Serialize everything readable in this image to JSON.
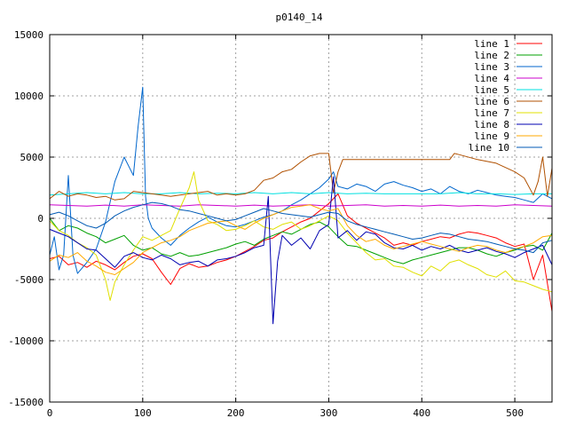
{
  "chart_data": {
    "type": "line",
    "title": "p0140_14",
    "xlabel": "",
    "ylabel": "",
    "xlim": [
      0,
      540
    ],
    "ylim": [
      -15000,
      15000
    ],
    "xticks": [
      0,
      100,
      200,
      300,
      400,
      500
    ],
    "yticks": [
      -15000,
      -10000,
      -5000,
      0,
      5000,
      10000,
      15000
    ],
    "grid": true,
    "legend_position": "top-right",
    "series": [
      {
        "name": "line 1",
        "color": "#ff0000",
        "x": [
          0,
          10,
          20,
          30,
          40,
          50,
          60,
          70,
          80,
          90,
          100,
          110,
          120,
          130,
          140,
          150,
          160,
          170,
          180,
          190,
          200,
          210,
          220,
          230,
          240,
          250,
          260,
          270,
          280,
          290,
          300,
          310,
          320,
          330,
          340,
          350,
          360,
          370,
          380,
          390,
          400,
          410,
          420,
          430,
          440,
          450,
          460,
          470,
          480,
          490,
          500,
          510,
          520,
          530,
          540
        ],
        "y": [
          -3300,
          -3100,
          -3800,
          -3600,
          -4000,
          -3500,
          -3800,
          -4200,
          -3600,
          -3100,
          -2900,
          -3300,
          -4400,
          -5400,
          -4100,
          -3700,
          -4000,
          -3900,
          -3600,
          -3400,
          -3100,
          -2700,
          -2300,
          -1800,
          -1600,
          -1100,
          -700,
          -300,
          0,
          600,
          1200,
          2000,
          200,
          -400,
          -800,
          -1200,
          -1600,
          -2200,
          -2000,
          -2200,
          -1900,
          -1700,
          -1500,
          -1600,
          -1300,
          -1100,
          -1200,
          -1400,
          -1600,
          -2000,
          -2300,
          -2100,
          -5000,
          -3000,
          -7600
        ]
      },
      {
        "name": "line 2",
        "color": "#00a000",
        "x": [
          0,
          10,
          20,
          30,
          40,
          50,
          60,
          70,
          80,
          90,
          100,
          110,
          120,
          130,
          140,
          150,
          160,
          170,
          180,
          190,
          200,
          210,
          220,
          230,
          240,
          250,
          260,
          270,
          280,
          290,
          300,
          310,
          320,
          330,
          340,
          350,
          360,
          370,
          380,
          390,
          400,
          410,
          420,
          430,
          440,
          450,
          460,
          470,
          480,
          490,
          500,
          510,
          520,
          530,
          540
        ],
        "y": [
          0,
          -1000,
          -600,
          -800,
          -1200,
          -1500,
          -2000,
          -1700,
          -1400,
          -2200,
          -2600,
          -2400,
          -2900,
          -3100,
          -2800,
          -3100,
          -3000,
          -2800,
          -2600,
          -2400,
          -2100,
          -1900,
          -2200,
          -1700,
          -1400,
          -1100,
          -1300,
          -900,
          -500,
          -300,
          -700,
          -1500,
          -2200,
          -2300,
          -2600,
          -2900,
          -3200,
          -3500,
          -3700,
          -3400,
          -3200,
          -3000,
          -2800,
          -2600,
          -2400,
          -2400,
          -2600,
          -2900,
          -3100,
          -2800,
          -2600,
          -2300,
          -2200,
          -2600,
          -1200
        ]
      },
      {
        "name": "line 3",
        "color": "#0066cc",
        "x": [
          0,
          5,
          10,
          15,
          20,
          25,
          30,
          40,
          50,
          60,
          70,
          80,
          90,
          95,
          100,
          103,
          106,
          110,
          120,
          130,
          140,
          150,
          160,
          170,
          180,
          190,
          200,
          210,
          220,
          230,
          240,
          250,
          260,
          270,
          280,
          290,
          300,
          305,
          310,
          320,
          330,
          340,
          350,
          360,
          370,
          380,
          390,
          400,
          410,
          420,
          430,
          440,
          450,
          460,
          470,
          480,
          490,
          500,
          510,
          520,
          530,
          540
        ],
        "y": [
          -3000,
          -1500,
          -4200,
          -3000,
          3500,
          -3000,
          -4500,
          -3600,
          -2500,
          -300,
          3000,
          5000,
          3500,
          7500,
          10700,
          1800,
          0,
          -800,
          -1600,
          -2200,
          -1400,
          -800,
          -300,
          100,
          -300,
          -600,
          -700,
          -500,
          -200,
          100,
          300,
          600,
          1100,
          1500,
          2000,
          2500,
          3200,
          3800,
          2600,
          2400,
          2800,
          2600,
          2200,
          2800,
          3000,
          2700,
          2500,
          2200,
          2400,
          2000,
          2600,
          2200,
          2000,
          2300,
          2100,
          1900,
          1800,
          1700,
          1500,
          1300,
          2000,
          1600
        ]
      },
      {
        "name": "line 4",
        "color": "#cc00cc",
        "x": [
          0,
          20,
          40,
          60,
          80,
          100,
          120,
          140,
          160,
          180,
          200,
          220,
          240,
          260,
          280,
          300,
          320,
          340,
          360,
          380,
          400,
          420,
          440,
          460,
          480,
          500,
          520,
          540
        ],
        "y": [
          1100,
          1050,
          1000,
          1080,
          1000,
          1100,
          1050,
          1000,
          1100,
          1050,
          1000,
          1080,
          1000,
          1050,
          1100,
          1000,
          1050,
          1100,
          1000,
          1050,
          1000,
          1080,
          1000,
          1050,
          1000,
          1100,
          1050,
          1000
        ]
      },
      {
        "name": "line 5",
        "color": "#00e0e0",
        "x": [
          0,
          20,
          40,
          60,
          80,
          100,
          120,
          140,
          160,
          180,
          200,
          220,
          240,
          260,
          280,
          300,
          320,
          340,
          360,
          380,
          400,
          420,
          440,
          460,
          480,
          500,
          520,
          540
        ],
        "y": [
          1900,
          2000,
          2100,
          2000,
          2100,
          2000,
          2000,
          2100,
          2000,
          2050,
          2000,
          2100,
          2000,
          2100,
          2000,
          2100,
          2000,
          2050,
          2000,
          2000,
          2000,
          2000,
          2100,
          2000,
          2000,
          1950,
          2000,
          2000
        ]
      },
      {
        "name": "line 6",
        "color": "#b05000",
        "x": [
          0,
          10,
          20,
          30,
          40,
          50,
          60,
          70,
          80,
          90,
          100,
          110,
          120,
          130,
          140,
          150,
          160,
          170,
          180,
          190,
          200,
          210,
          220,
          230,
          240,
          250,
          260,
          270,
          280,
          290,
          300,
          305,
          310,
          315,
          320,
          330,
          350,
          400,
          430,
          435,
          440,
          460,
          480,
          500,
          510,
          520,
          525,
          530,
          535,
          540
        ],
        "y": [
          1600,
          2200,
          1800,
          2000,
          1900,
          1700,
          1800,
          1500,
          1600,
          2200,
          2100,
          2000,
          1900,
          1800,
          1900,
          2000,
          2100,
          2200,
          1900,
          2000,
          1900,
          2000,
          2300,
          3100,
          3300,
          3800,
          4000,
          4600,
          5100,
          5300,
          5300,
          2100,
          3800,
          4800,
          4800,
          4800,
          4800,
          4800,
          4800,
          5300,
          5200,
          4800,
          4500,
          3800,
          3300,
          1900,
          3000,
          5000,
          1800,
          4100
        ]
      },
      {
        "name": "line 7",
        "color": "#e0e000",
        "x": [
          0,
          10,
          20,
          30,
          40,
          50,
          60,
          65,
          70,
          80,
          90,
          100,
          110,
          120,
          130,
          140,
          150,
          155,
          160,
          170,
          180,
          190,
          200,
          210,
          220,
          230,
          240,
          250,
          260,
          270,
          280,
          290,
          300,
          310,
          320,
          330,
          340,
          350,
          360,
          370,
          380,
          390,
          400,
          410,
          420,
          430,
          440,
          450,
          460,
          470,
          480,
          490,
          500,
          510,
          520,
          530,
          540
        ],
        "y": [
          -200,
          -1000,
          -1400,
          -2000,
          -2400,
          -3000,
          -5000,
          -6700,
          -5200,
          -3800,
          -2600,
          -1500,
          -1800,
          -1400,
          -1000,
          800,
          2500,
          3800,
          1500,
          -200,
          -500,
          -1000,
          -900,
          -600,
          -200,
          -700,
          -900,
          -500,
          -300,
          -900,
          -600,
          -200,
          200,
          -200,
          -1200,
          -2000,
          -2800,
          -3400,
          -3300,
          -3900,
          -4000,
          -4400,
          -4700,
          -3900,
          -4300,
          -3600,
          -3400,
          -3800,
          -4100,
          -4600,
          -4800,
          -4300,
          -5100,
          -5200,
          -5500,
          -5800,
          -6000
        ]
      },
      {
        "name": "line 8",
        "color": "#0000b0",
        "x": [
          0,
          10,
          20,
          30,
          40,
          50,
          60,
          70,
          80,
          90,
          100,
          110,
          120,
          130,
          140,
          150,
          160,
          170,
          180,
          190,
          200,
          210,
          220,
          230,
          235,
          240,
          245,
          250,
          260,
          270,
          280,
          290,
          300,
          305,
          310,
          320,
          330,
          340,
          350,
          360,
          370,
          380,
          390,
          400,
          410,
          420,
          430,
          440,
          450,
          460,
          470,
          480,
          490,
          500,
          510,
          520,
          530,
          540
        ],
        "y": [
          -900,
          -1200,
          -1500,
          -2000,
          -2500,
          -2600,
          -3300,
          -4000,
          -3100,
          -2800,
          -3200,
          -3400,
          -3000,
          -3300,
          -3800,
          -3600,
          -3500,
          -3900,
          -3400,
          -3300,
          -3100,
          -2800,
          -2400,
          -2200,
          1800,
          -8600,
          -3500,
          -1400,
          -2200,
          -1600,
          -2500,
          -1000,
          -500,
          3400,
          -1600,
          -1000,
          -1800,
          -1100,
          -1300,
          -2000,
          -2400,
          -2500,
          -2200,
          -2600,
          -2300,
          -2500,
          -2200,
          -2600,
          -2800,
          -2600,
          -2400,
          -2700,
          -2900,
          -3200,
          -2800,
          -2500,
          -2200,
          -3800
        ]
      },
      {
        "name": "line 9",
        "color": "#ffaa00",
        "x": [
          0,
          10,
          20,
          30,
          40,
          50,
          60,
          70,
          80,
          90,
          100,
          110,
          120,
          130,
          140,
          150,
          160,
          170,
          180,
          190,
          200,
          210,
          220,
          230,
          240,
          250,
          260,
          270,
          280,
          290,
          300,
          310,
          320,
          330,
          340,
          350,
          360,
          370,
          380,
          390,
          400,
          410,
          420,
          430,
          440,
          450,
          460,
          470,
          480,
          490,
          500,
          510,
          520,
          530,
          540
        ],
        "y": [
          -3500,
          -3000,
          -3200,
          -2800,
          -3500,
          -3900,
          -4400,
          -4600,
          -4100,
          -3600,
          -2800,
          -2400,
          -2000,
          -1800,
          -1500,
          -1000,
          -700,
          -400,
          -300,
          -200,
          -600,
          -900,
          -400,
          0,
          300,
          600,
          900,
          1000,
          1100,
          800,
          600,
          800,
          -600,
          -1400,
          -1900,
          -1700,
          -2200,
          -2500,
          -2300,
          -2100,
          -1900,
          -2100,
          -2300,
          -2500,
          -2700,
          -2400,
          -2200,
          -2300,
          -2600,
          -2800,
          -2500,
          -2300,
          -2000,
          -1500,
          -1400
        ]
      },
      {
        "name": "line 10",
        "color": "#005ab4",
        "x": [
          0,
          10,
          20,
          30,
          40,
          50,
          60,
          70,
          80,
          90,
          100,
          110,
          120,
          130,
          140,
          150,
          160,
          170,
          180,
          190,
          200,
          210,
          220,
          230,
          240,
          250,
          260,
          270,
          280,
          290,
          300,
          310,
          320,
          330,
          340,
          350,
          360,
          370,
          380,
          390,
          400,
          410,
          420,
          430,
          440,
          450,
          460,
          470,
          480,
          490,
          500,
          510,
          520,
          530,
          540
        ],
        "y": [
          300,
          500,
          200,
          -200,
          -600,
          -800,
          -400,
          200,
          600,
          900,
          1100,
          1300,
          1200,
          1000,
          700,
          600,
          400,
          200,
          0,
          -200,
          -100,
          200,
          500,
          800,
          600,
          400,
          300,
          200,
          100,
          300,
          500,
          400,
          -200,
          -500,
          -700,
          -900,
          -1100,
          -1300,
          -1500,
          -1700,
          -1600,
          -1400,
          -1200,
          -1300,
          -1500,
          -1700,
          -1800,
          -1900,
          -2100,
          -2300,
          -2500,
          -2600,
          -2800,
          -2000,
          -1800
        ]
      }
    ]
  }
}
